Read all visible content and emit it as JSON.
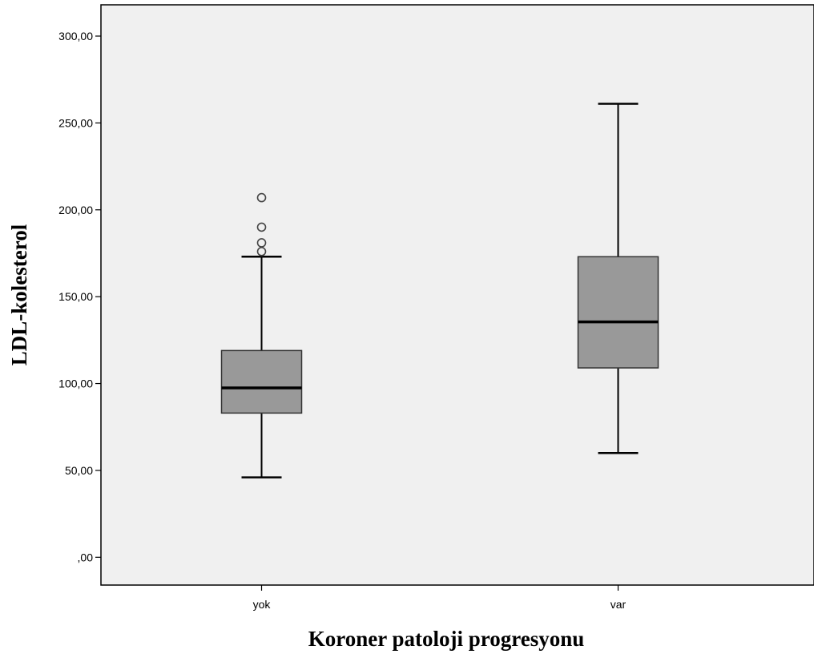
{
  "chart_data": {
    "type": "boxplot",
    "xlabel": "Koroner patoloji progresyonu",
    "ylabel": "LDL-kolesterol",
    "ylim": [
      -16,
      318
    ],
    "yticks": [
      0,
      50,
      100,
      150,
      200,
      250,
      300
    ],
    "ytick_labels": [
      ",00",
      "50,00",
      "100,00",
      "150,00",
      "200,00",
      "250,00",
      "300,00"
    ],
    "grid": false,
    "colors": {
      "plot_background": "#f0f0f0",
      "box_fill": "#999999",
      "stroke": "#000000"
    },
    "categories": [
      "yok",
      "var"
    ],
    "boxes": [
      {
        "category": "yok",
        "min": 46,
        "q1": 83,
        "median": 97.5,
        "q3": 119,
        "max": 173,
        "outliers": [
          176,
          181,
          190,
          207
        ]
      },
      {
        "category": "var",
        "min": 60,
        "q1": 109,
        "median": 135.5,
        "q3": 173,
        "max": 261,
        "outliers": []
      }
    ]
  }
}
